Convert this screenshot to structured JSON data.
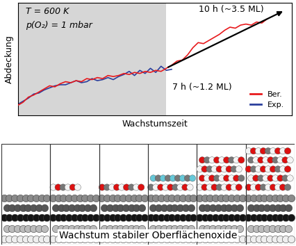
{
  "chart_data": {
    "type": "line",
    "x_label": "Wachstumszeit",
    "y_label": "Abdeckung",
    "xlim": [
      0,
      12.9
    ],
    "ylim": [
      0,
      11
    ],
    "xticks": [],
    "yticks": [],
    "tick_labels": false,
    "legend": "lower right",
    "shaded_x": [
      0,
      7
    ],
    "annotations": [
      "T = 600 K",
      "p(O₂) = 1 mbar",
      "10 h (~3.5 ML)",
      "7 h (~1.2 ML)"
    ],
    "series": [
      {
        "name": "Ber.",
        "color": "#e8191c",
        "x": [
          0,
          0.25,
          0.5,
          0.75,
          1,
          1.25,
          1.5,
          1.75,
          2,
          2.25,
          2.5,
          2.75,
          3,
          3.25,
          3.5,
          3.75,
          4,
          4.25,
          4.5,
          4.75,
          5,
          5.25,
          5.5,
          5.75,
          6,
          6.25,
          6.5,
          6.75,
          7,
          7.25,
          7.5,
          7.75,
          8,
          8.25,
          8.5,
          8.75,
          9,
          9.25,
          9.5,
          9.75,
          10,
          10.25,
          10.5,
          10.75,
          11,
          11.25,
          11.5,
          11.75
        ],
        "values": [
          1.0,
          1.3,
          1.8,
          2.0,
          2.3,
          2.6,
          2.9,
          2.8,
          3.1,
          3.3,
          3.2,
          3.4,
          3.3,
          3.6,
          3.5,
          3.7,
          3.6,
          3.9,
          3.8,
          3.9,
          4.1,
          4.0,
          4.2,
          4.1,
          4.3,
          4.2,
          4.4,
          4.3,
          4.6,
          4.9,
          5.3,
          5.4,
          5.9,
          6.6,
          7.1,
          7.0,
          7.3,
          7.6,
          7.9,
          8.3,
          8.6,
          8.5,
          8.8,
          8.9,
          8.8,
          9.1,
          9.0,
          9.4
        ]
      },
      {
        "name": "Exp.",
        "color": "#2a3e9c",
        "x": [
          0,
          0.25,
          0.5,
          0.75,
          1,
          1.25,
          1.5,
          1.75,
          2,
          2.25,
          2.5,
          2.75,
          3,
          3.25,
          3.5,
          3.75,
          4,
          4.25,
          4.5,
          4.75,
          5,
          5.25,
          5.5,
          5.75,
          6,
          6.25,
          6.5,
          6.75,
          7,
          7.25
        ],
        "values": [
          1.1,
          1.4,
          1.7,
          2.1,
          2.2,
          2.5,
          2.7,
          2.9,
          3.0,
          3.0,
          3.2,
          3.4,
          3.2,
          3.3,
          3.6,
          3.4,
          3.5,
          3.7,
          3.5,
          3.8,
          4.0,
          4.3,
          3.9,
          4.4,
          4.1,
          4.6,
          4.2,
          4.8,
          4.4,
          4.5
        ]
      }
    ]
  },
  "illustration": {
    "caption": "Wachstum stabiler Oberflächenoxide"
  }
}
